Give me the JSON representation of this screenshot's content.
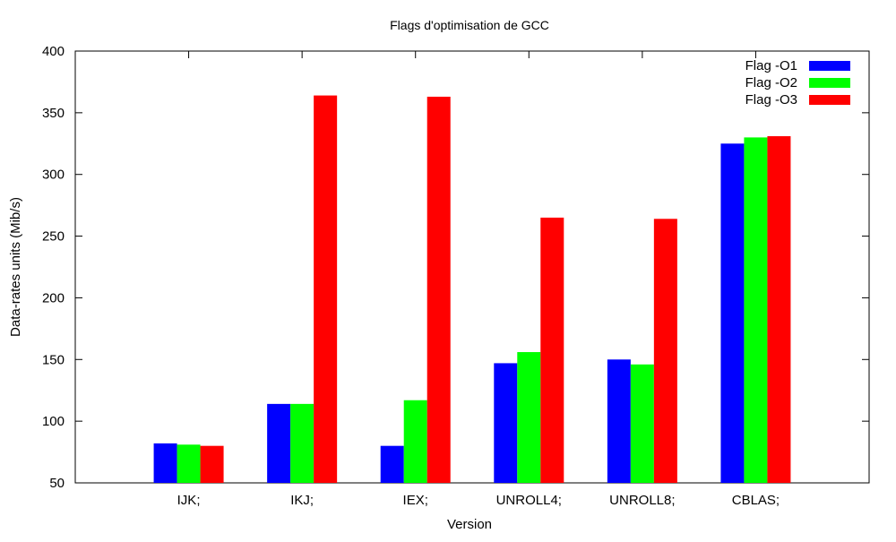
{
  "chart_data": {
    "type": "bar",
    "title": "Flags d'optimisation de GCC",
    "xlabel": "Version",
    "ylabel": "Data-rates units (Mib/s)",
    "ylim": [
      50,
      400
    ],
    "yticks": [
      "50",
      "100",
      "150",
      "200",
      "250",
      "300",
      "350",
      "400"
    ],
    "categories": [
      "IJK;",
      "IKJ;",
      "IEX;",
      "UNROLL4;",
      "UNROLL8;",
      "CBLAS;"
    ],
    "series": [
      {
        "name": "Flag -O1",
        "color": "#0000ff",
        "values": [
          82,
          114,
          80,
          147,
          150,
          325
        ]
      },
      {
        "name": "Flag -O2",
        "color": "#00ff00",
        "values": [
          81,
          114,
          117,
          156,
          146,
          330
        ]
      },
      {
        "name": "Flag -O3",
        "color": "#ff0000",
        "values": [
          80,
          364,
          363,
          265,
          264,
          331
        ]
      }
    ],
    "legend_position": "top-right",
    "grid": false
  }
}
